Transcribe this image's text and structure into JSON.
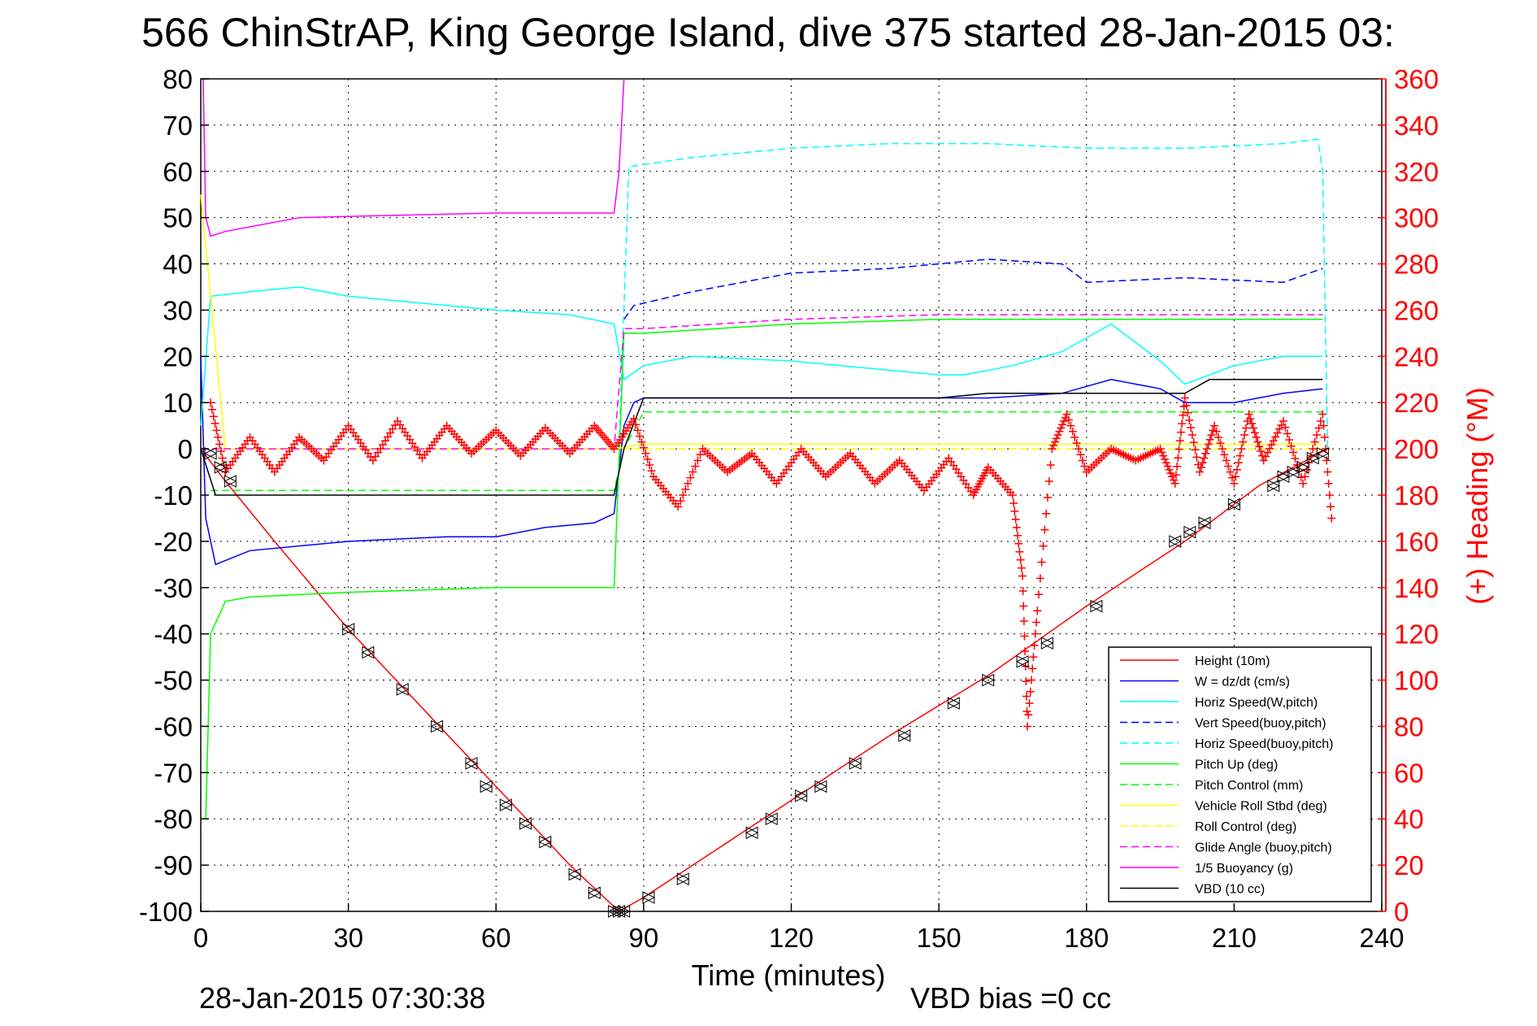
{
  "chart_data": {
    "type": "line",
    "title": "566 ChinStrAP, King George Island, dive 375 started 28-Jan-2015 03:",
    "xlabel": "Time (minutes)",
    "ylabel_right": "(+) Heading (°M)",
    "xlim": [
      0,
      240
    ],
    "ylim": [
      -100,
      80
    ],
    "ylim_right": [
      0,
      360
    ],
    "x_ticks": [
      "0",
      "30",
      "60",
      "90",
      "120",
      "150",
      "180",
      "210",
      "240"
    ],
    "y_ticks": [
      "80",
      "70",
      "60",
      "50",
      "40",
      "30",
      "20",
      "10",
      "0",
      "-10",
      "-20",
      "-30",
      "-40",
      "-50",
      "-60",
      "-70",
      "-80",
      "-90",
      "-100"
    ],
    "y_right_ticks": [
      "360",
      "340",
      "320",
      "300",
      "280",
      "260",
      "240",
      "220",
      "200",
      "180",
      "160",
      "140",
      "120",
      "100",
      "80",
      "60",
      "40",
      "20",
      "0"
    ],
    "grid": true,
    "legend_position": "bottom-right",
    "footer_left": "28-Jan-2015 07:30:38",
    "footer_right": "VBD bias =0 cc",
    "series": [
      {
        "name": "Height (10m)",
        "color": "#ff0000",
        "style": "solid",
        "x": [
          0,
          5,
          15,
          30,
          45,
          60,
          75,
          85,
          90,
          100,
          120,
          140,
          160,
          180,
          200,
          215,
          229
        ],
        "y": [
          0,
          -7,
          -20,
          -39,
          -56,
          -73,
          -90,
          -100,
          -97,
          -90,
          -76,
          -62,
          -49,
          -34,
          -20,
          -8,
          0
        ]
      },
      {
        "name": "W = dz/dt (cm/s)",
        "color": "#0000ff",
        "style": "solid",
        "x": [
          0,
          1,
          3,
          10,
          30,
          50,
          60,
          70,
          80,
          84,
          86,
          88,
          90,
          100,
          120,
          140,
          160,
          175,
          185,
          195,
          200,
          210,
          220,
          228
        ],
        "y": [
          20,
          -15,
          -25,
          -22,
          -20,
          -19,
          -19,
          -17,
          -16,
          -14,
          5,
          10,
          11,
          11,
          11,
          11,
          11,
          12,
          15,
          13,
          10,
          10,
          12,
          13
        ]
      },
      {
        "name": "Horiz Speed(W,pitch)",
        "color": "#00ffff",
        "style": "solid",
        "x": [
          0,
          2,
          10,
          20,
          30,
          40,
          60,
          75,
          84,
          86,
          90,
          100,
          120,
          140,
          150,
          155,
          165,
          175,
          185,
          195,
          200,
          210,
          220,
          228
        ],
        "y": [
          5,
          33,
          34,
          35,
          33,
          32,
          30,
          29,
          27,
          15,
          18,
          20,
          19,
          17,
          16,
          16,
          18,
          21,
          27,
          19,
          14,
          18,
          20,
          20
        ]
      },
      {
        "name": "Vert Speed(buoy,pitch)",
        "color": "#0000ff",
        "style": "dashed",
        "x": [
          86,
          88,
          100,
          120,
          140,
          160,
          175,
          180,
          200,
          220,
          228
        ],
        "y": [
          28,
          31,
          34,
          38,
          39,
          41,
          40,
          36,
          37,
          36,
          39
        ]
      },
      {
        "name": "Horiz Speed(buoy,pitch)",
        "color": "#00ffff",
        "style": "dashed",
        "x": [
          85,
          87,
          100,
          120,
          140,
          160,
          180,
          200,
          220,
          227,
          228,
          229
        ],
        "y": [
          0,
          61,
          63,
          65,
          66,
          66,
          65,
          65,
          66,
          67,
          60,
          0
        ]
      },
      {
        "name": "Pitch Up (deg)",
        "color": "#00ff00",
        "style": "solid",
        "x": [
          1,
          2,
          5,
          10,
          30,
          60,
          84,
          86,
          90,
          120,
          150,
          180,
          210,
          228
        ],
        "y": [
          -80,
          -40,
          -33,
          -32,
          -31,
          -30,
          -30,
          25,
          25,
          27,
          28,
          28,
          28,
          28
        ]
      },
      {
        "name": "Pitch Control (mm)",
        "color": "#00ff00",
        "style": "dashed",
        "x": [
          2,
          10,
          60,
          84,
          86,
          90,
          120,
          150,
          180,
          210,
          228
        ],
        "y": [
          -9,
          -9,
          -9,
          -9,
          0,
          8,
          8,
          8,
          8,
          8,
          8
        ]
      },
      {
        "name": "Vehicle Roll Stbd (deg)",
        "color": "#ffff00",
        "style": "solid",
        "x": [
          0,
          5,
          10,
          30,
          60,
          84,
          90,
          120,
          150,
          180,
          210,
          228
        ],
        "y": [
          55,
          0,
          0,
          0,
          0,
          0,
          1,
          1,
          1,
          1,
          1,
          1
        ]
      },
      {
        "name": "Roll Control (deg)",
        "color": "#ffff00",
        "style": "dashed",
        "x": [
          0,
          5,
          10,
          60,
          90,
          120,
          180,
          228
        ],
        "y": [
          0,
          0,
          0,
          0,
          0,
          0,
          0,
          0
        ]
      },
      {
        "name": "Glide Angle (buoy,pitch)",
        "color": "#ff00ff",
        "style": "dashed",
        "x": [
          0,
          84,
          86,
          90,
          120,
          150,
          180,
          210,
          228
        ],
        "y": [
          0,
          0,
          26,
          26,
          28,
          29,
          29,
          29,
          29
        ]
      },
      {
        "name": "1/5 Buoyancy (g)",
        "color": "#ff00ff",
        "style": "solid",
        "x": [
          0.5,
          1,
          2,
          5,
          10,
          20,
          40,
          60,
          80,
          84,
          85,
          86
        ],
        "y": [
          80,
          50,
          46,
          47,
          48,
          50,
          50.5,
          51,
          51,
          51,
          60,
          80
        ]
      },
      {
        "name": "VBD (10 cc)",
        "color": "#000000",
        "style": "solid",
        "x": [
          0,
          3,
          10,
          60,
          84,
          86,
          90,
          150,
          160,
          200,
          205,
          228
        ],
        "y": [
          0,
          -10,
          -10,
          -10,
          -10,
          0,
          11,
          11,
          12,
          12,
          15,
          15
        ]
      },
      {
        "name": "",
        "axis": "right",
        "color": "#ff0000",
        "style": "plus-markers",
        "x": [
          2,
          5,
          10,
          15,
          20,
          25,
          30,
          35,
          40,
          45,
          50,
          55,
          60,
          65,
          70,
          75,
          80,
          84,
          88,
          92,
          97,
          102,
          107,
          112,
          117,
          122,
          127,
          132,
          137,
          142,
          147,
          152,
          157,
          160,
          165,
          167,
          168,
          170,
          173,
          176,
          180,
          185,
          190,
          195,
          198,
          200,
          203,
          206,
          210,
          213,
          216,
          220,
          224,
          228,
          230
        ],
        "y": [
          220,
          190,
          205,
          190,
          205,
          195,
          210,
          195,
          212,
          196,
          210,
          198,
          208,
          197,
          209,
          198,
          210,
          200,
          213,
          188,
          175,
          200,
          190,
          198,
          185,
          200,
          188,
          198,
          185,
          195,
          182,
          196,
          180,
          192,
          180,
          145,
          80,
          130,
          200,
          215,
          190,
          200,
          195,
          200,
          185,
          222,
          190,
          210,
          185,
          215,
          195,
          212,
          185,
          215,
          165
        ]
      },
      {
        "name": "",
        "color": "#000000",
        "style": "triangle-markers",
        "x": [
          2,
          4,
          6,
          30,
          34,
          41,
          48,
          55,
          58,
          62,
          66,
          70,
          76,
          80,
          84,
          85,
          86,
          91,
          98,
          112,
          116,
          122,
          126,
          133,
          143,
          153,
          160,
          167,
          172,
          182,
          198,
          201,
          204,
          210,
          218,
          220,
          222,
          224,
          226,
          228
        ],
        "y": [
          -1,
          -4,
          -7,
          -39,
          -44,
          -52,
          -60,
          -68,
          -73,
          -77,
          -81,
          -85,
          -92,
          -96,
          -100,
          -100,
          -100,
          -97,
          -93,
          -83,
          -80,
          -75,
          -73,
          -68,
          -62,
          -55,
          -50,
          -46,
          -42,
          -34,
          -20,
          -18,
          -16,
          -12,
          -8,
          -6,
          -5,
          -4,
          -2,
          -1
        ]
      }
    ]
  }
}
